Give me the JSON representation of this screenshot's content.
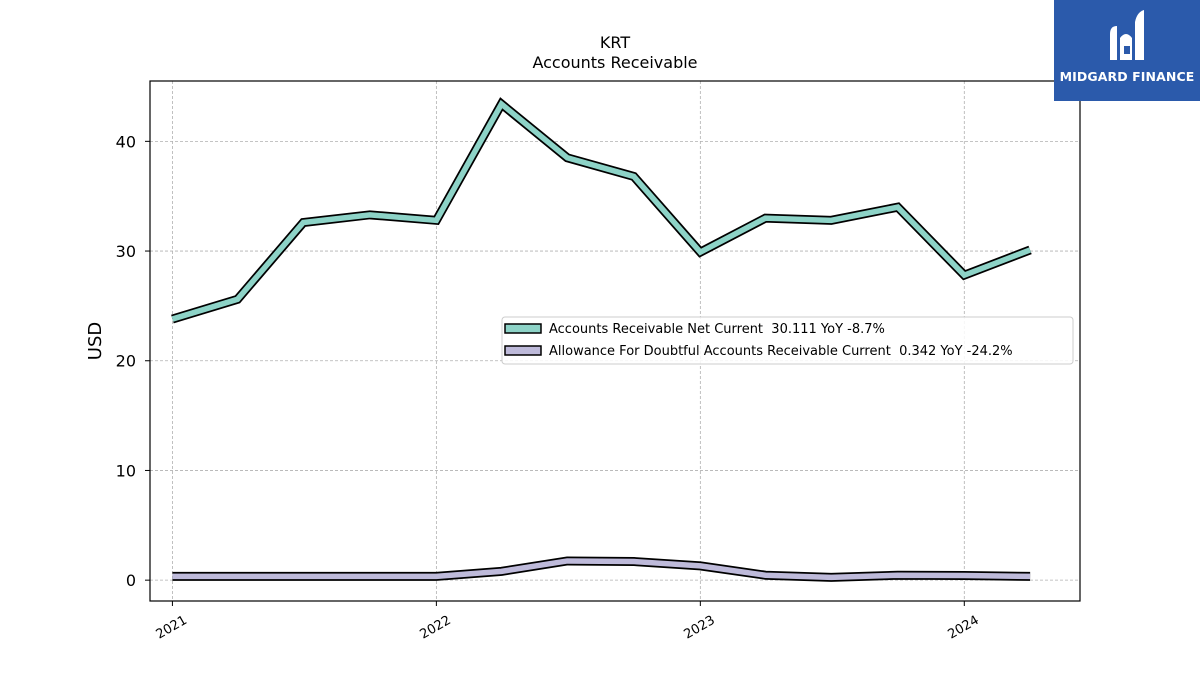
{
  "logo": {
    "text": "MIDGARD FINANCE"
  },
  "chart_data": {
    "type": "line",
    "title": "KRT",
    "subtitle": "Accounts Receivable",
    "ylabel": "USD",
    "xlabel": "",
    "x": [
      "2021-01-01",
      "2021-04-01",
      "2021-07-01",
      "2021-10-01",
      "2022-01-01",
      "2022-04-01",
      "2022-07-01",
      "2022-10-01",
      "2023-01-01",
      "2023-04-01",
      "2023-07-01",
      "2023-10-01",
      "2024-01-01",
      "2024-04-01"
    ],
    "xticks": [
      "2021",
      "2022",
      "2023",
      "2024"
    ],
    "yticks": [
      0,
      10,
      20,
      30,
      40
    ],
    "ylim": [
      -1.9,
      45.5
    ],
    "grid": true,
    "legend_position": "center-right",
    "series": [
      {
        "name": "Accounts Receivable Net Current  30.111 YoY -8.7%",
        "color": "#8dd3c7",
        "values": [
          23.8,
          25.6,
          32.6,
          33.3,
          32.8,
          43.4,
          38.5,
          36.8,
          29.9,
          33.0,
          32.8,
          34.0,
          27.8,
          30.1
        ]
      },
      {
        "name": "Allowance For Doubtful Accounts Receivable Current  0.342 YoY -24.2%",
        "color": "#bebada",
        "values": [
          0.35,
          0.35,
          0.35,
          0.35,
          0.35,
          0.8,
          1.75,
          1.7,
          1.3,
          0.45,
          0.25,
          0.45,
          0.42,
          0.34
        ]
      }
    ]
  }
}
